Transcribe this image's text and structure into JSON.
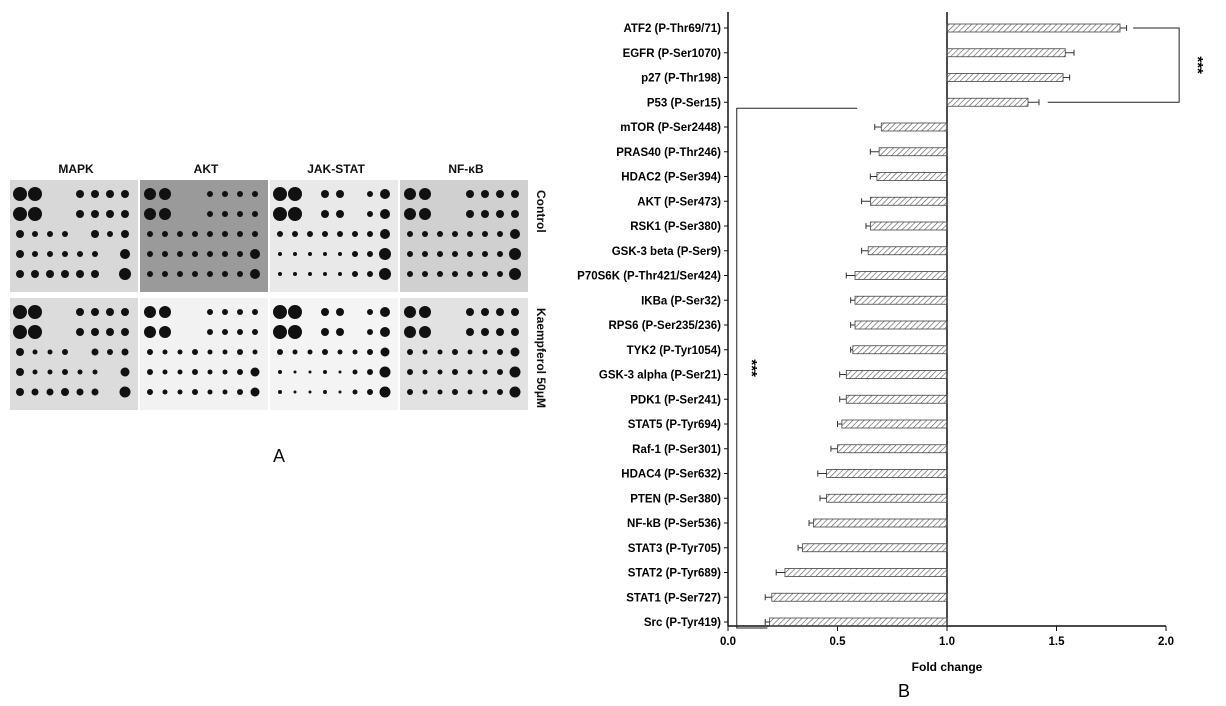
{
  "panel_a": {
    "label": "A",
    "pathways": [
      "MAPK",
      "AKT",
      "JAK-STAT",
      "NF-κB"
    ],
    "row_labels": [
      "Control",
      "Kaempferol 50μM"
    ]
  },
  "panel_b": {
    "label": "B"
  },
  "significance": {
    "top": "***",
    "bottom": "***"
  },
  "chart_data": {
    "type": "bar",
    "orientation": "horizontal",
    "title": "",
    "xlabel": "Fold change",
    "ylabel": "",
    "xlim": [
      0,
      2.0
    ],
    "xticks": [
      "0.0",
      "0.5",
      "1.0",
      "1.5",
      "2.0"
    ],
    "reference_line": 1.0,
    "categories": [
      "ATF2 (P-Thr69/71)",
      "EGFR (P-Ser1070)",
      "p27 (P-Thr198)",
      "P53 (P-Ser15)",
      "mTOR (P-Ser2448)",
      "PRAS40 (P-Thr246)",
      "HDAC2 (P-Ser394)",
      "AKT (P-Ser473)",
      "RSK1 (P-Ser380)",
      "GSK-3 beta (P-Ser9)",
      "P70S6K (P-Thr421/Ser424)",
      "IKBa (P-Ser32)",
      "RPS6 (P-Ser235/236)",
      "TYK2 (P-Tyr1054)",
      "GSK-3 alpha (P-Ser21)",
      "PDK1 (P-Ser241)",
      "STAT5 (P-Tyr694)",
      "Raf-1 (P-Ser301)",
      "HDAC4 (P-Ser632)",
      "PTEN (P-Ser380)",
      "NF-kB (P-Ser536)",
      "STAT3 (P-Tyr705)",
      "STAT2 (P-Tyr689)",
      "STAT1 (P-Ser727)",
      "Src (P-Tyr419)"
    ],
    "values": [
      1.79,
      1.54,
      1.53,
      1.37,
      0.7,
      0.69,
      0.68,
      0.65,
      0.65,
      0.64,
      0.58,
      0.58,
      0.58,
      0.57,
      0.54,
      0.54,
      0.52,
      0.5,
      0.45,
      0.45,
      0.39,
      0.34,
      0.26,
      0.2,
      0.19
    ],
    "errors": [
      0.03,
      0.04,
      0.03,
      0.05,
      0.03,
      0.04,
      0.03,
      0.04,
      0.02,
      0.03,
      0.04,
      0.02,
      0.02,
      0.01,
      0.03,
      0.03,
      0.02,
      0.03,
      0.04,
      0.03,
      0.02,
      0.02,
      0.04,
      0.03,
      0.02
    ],
    "grid": false,
    "legend": false
  }
}
